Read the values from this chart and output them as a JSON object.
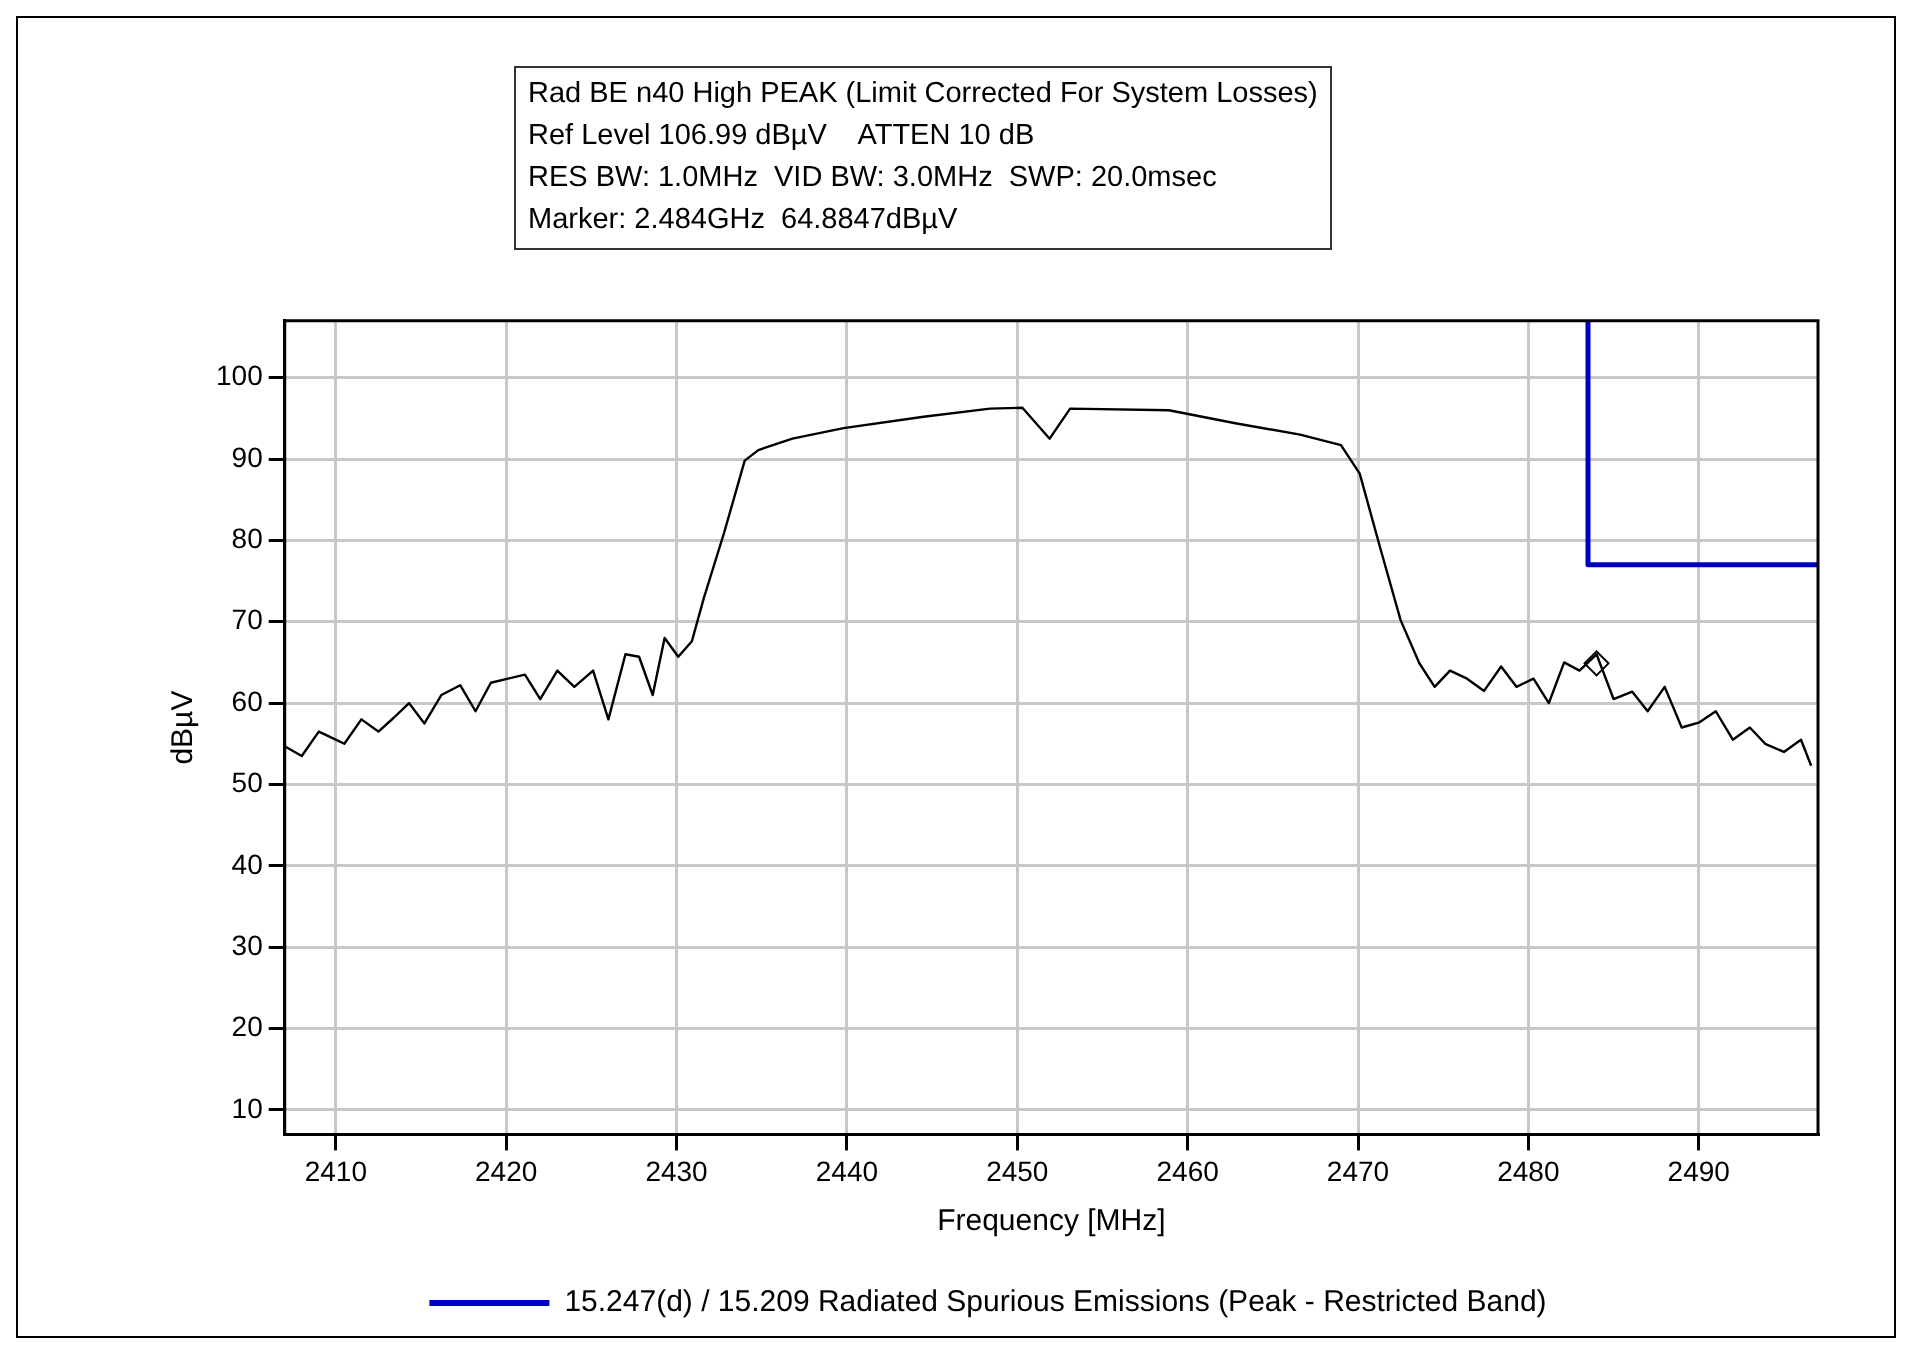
{
  "chart_data": {
    "type": "line",
    "title": "Rad BE n40 High PEAK (Limit Corrected For System Losses)",
    "annotations": [
      "Ref Level 106.99 dBµV    ATTEN 10 dB",
      "RES BW: 1.0MHz  VID BW: 3.0MHz  SWP: 20.0msec",
      "Marker: 2.484GHz  64.8847dBµV"
    ],
    "xlabel": "Frequency [MHz]",
    "ylabel": "dBµV",
    "xlim": [
      2407,
      2497
    ],
    "xticks": [
      2410,
      2420,
      2430,
      2440,
      2450,
      2460,
      2470,
      2480,
      2490
    ],
    "ylim": [
      6.99,
      106.99
    ],
    "yticks": [
      10,
      20,
      30,
      40,
      50,
      60,
      70,
      80,
      90,
      100
    ],
    "grid": true,
    "legend": "bottom",
    "marker": "none",
    "line_style": "solid",
    "series": [
      {
        "color": "#000000",
        "x": [
          2407,
          2408,
          2409,
          2409.5,
          2410.5,
          2411.5,
          2412.5,
          2413.4,
          2414.3,
          2415.2,
          2416.2,
          2417.3,
          2418.2,
          2419.1,
          2420.1,
          2421.1,
          2422,
          2423,
          2424,
          2425.1,
          2426,
          2427,
          2427.8,
          2428.6,
          2429.3,
          2430.1,
          2430.9,
          2431.6,
          2432.8,
          2434,
          2434.8,
          2436.8,
          2439.8,
          2444.5,
          2448.4,
          2450.3,
          2451.9,
          2453.1,
          2458.9,
          2462.8,
          2466.6,
          2469,
          2470.1,
          2471.3,
          2472.5,
          2473.6,
          2474.5,
          2475.4,
          2476.4,
          2477.4,
          2478.4,
          2479.3,
          2480.3,
          2481.2,
          2482.1,
          2483,
          2484,
          2485,
          2486.1,
          2487,
          2488,
          2489,
          2490,
          2491,
          2492,
          2493,
          2493.9,
          2495,
          2496,
          2496.6
        ],
        "values": [
          54.7,
          53.5,
          56.5,
          56,
          55,
          58,
          56.5,
          58.2,
          60,
          57.5,
          61,
          62.2,
          59,
          62.5,
          63,
          63.5,
          60.5,
          64,
          62,
          64,
          58,
          66,
          65.7,
          61,
          68,
          65.7,
          67.6,
          72.9,
          81,
          89.8,
          91.1,
          92.5,
          93.8,
          95.2,
          96.2,
          96.3,
          92.5,
          96.2,
          96,
          94.4,
          93,
          91.7,
          88.2,
          79.1,
          70.2,
          64.9,
          62,
          64,
          63,
          61.5,
          64.5,
          62,
          63,
          60,
          65,
          64,
          66,
          60.5,
          61.4,
          59,
          62,
          57,
          57.6,
          59,
          55.5,
          57,
          55,
          54,
          55.5,
          52.3
        ]
      },
      {
        "type": "line",
        "name": "15.247(d) / 15.209 Radiated Spurious Emissions (Peak - Restricted Band)",
        "color": "#0000c0",
        "x": [
          2483.5,
          2483.5,
          2497
        ],
        "values": [
          106.99,
          77,
          77
        ]
      },
      {
        "type": "scatter",
        "color": "#000000",
        "marker": "diamond",
        "x": [
          2484
        ],
        "values": [
          64.8847
        ]
      }
    ]
  }
}
